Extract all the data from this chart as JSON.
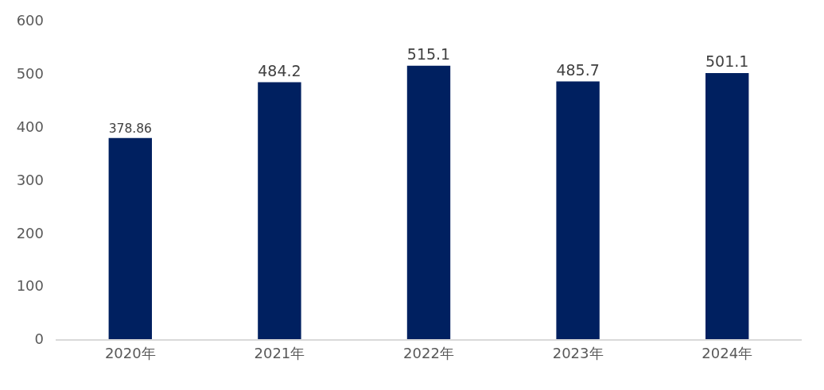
{
  "chart_data": {
    "type": "bar",
    "categories": [
      "2020年",
      "2021年",
      "2022年",
      "2023年",
      "2024年"
    ],
    "values": [
      378.86,
      484.2,
      515.1,
      485.7,
      501.1
    ],
    "color": "#002060",
    "ylim": [
      0,
      600
    ],
    "yticks": [
      0,
      100,
      200,
      300,
      400,
      500,
      600
    ],
    "data_labels": true,
    "grid": false,
    "legend": false
  }
}
